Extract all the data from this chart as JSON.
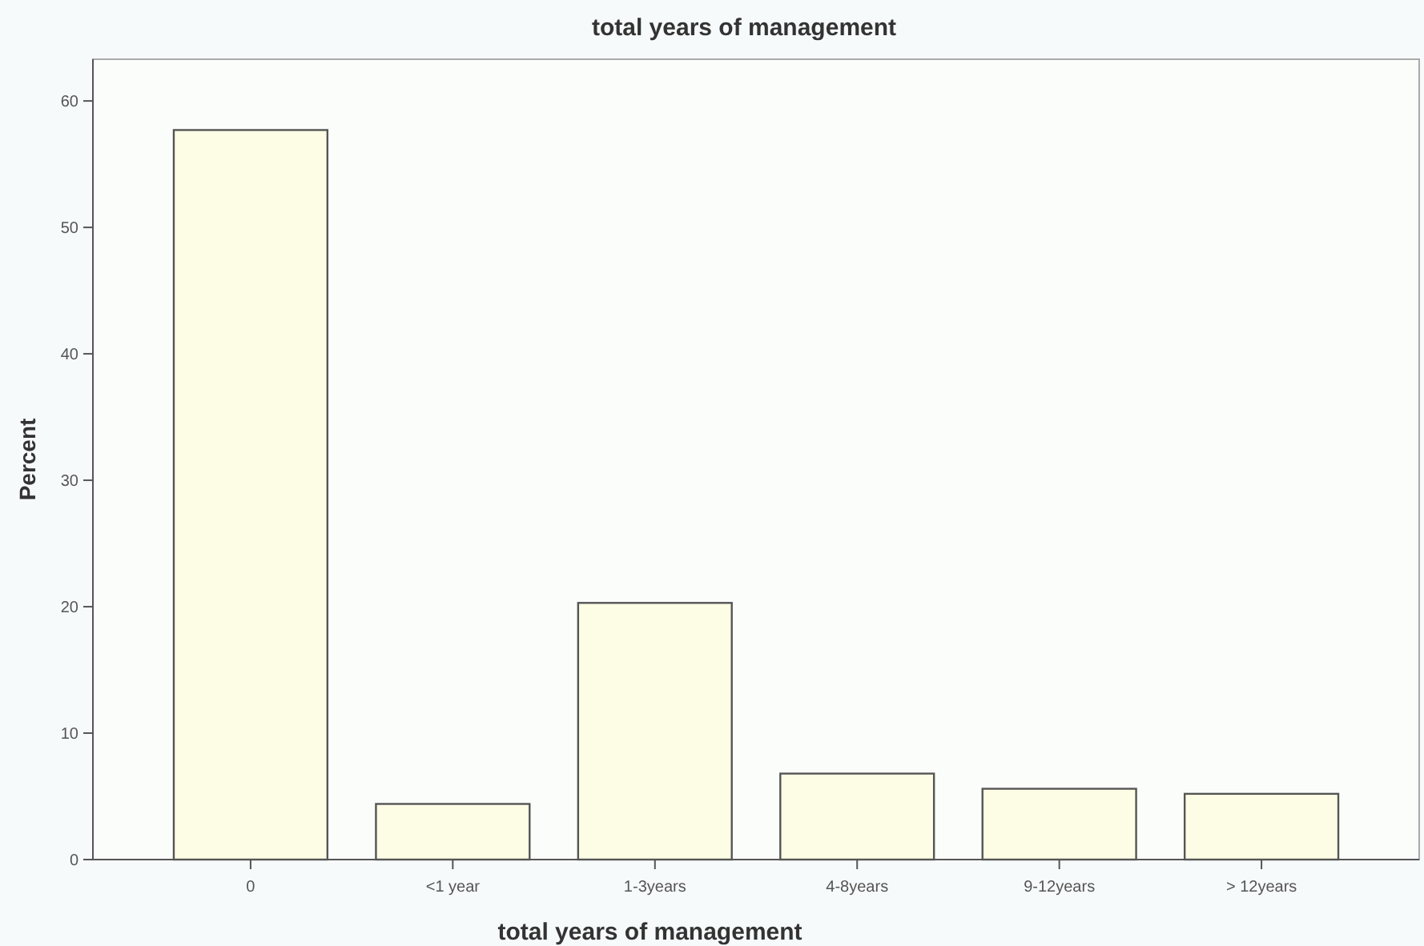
{
  "chart_data": {
    "type": "bar",
    "title": "total years of management",
    "xlabel": "total years of management",
    "ylabel": "Percent",
    "categories": [
      "0",
      "<1 year",
      "1-3years",
      "4-8years",
      "9-12years",
      "> 12years"
    ],
    "values": [
      57.7,
      4.4,
      20.3,
      6.8,
      5.6,
      5.2
    ],
    "color": "#fdfde6",
    "ylim": [
      0,
      63.3
    ],
    "yticks": [
      0,
      10,
      20,
      30,
      40,
      50,
      60
    ],
    "grid": false
  }
}
